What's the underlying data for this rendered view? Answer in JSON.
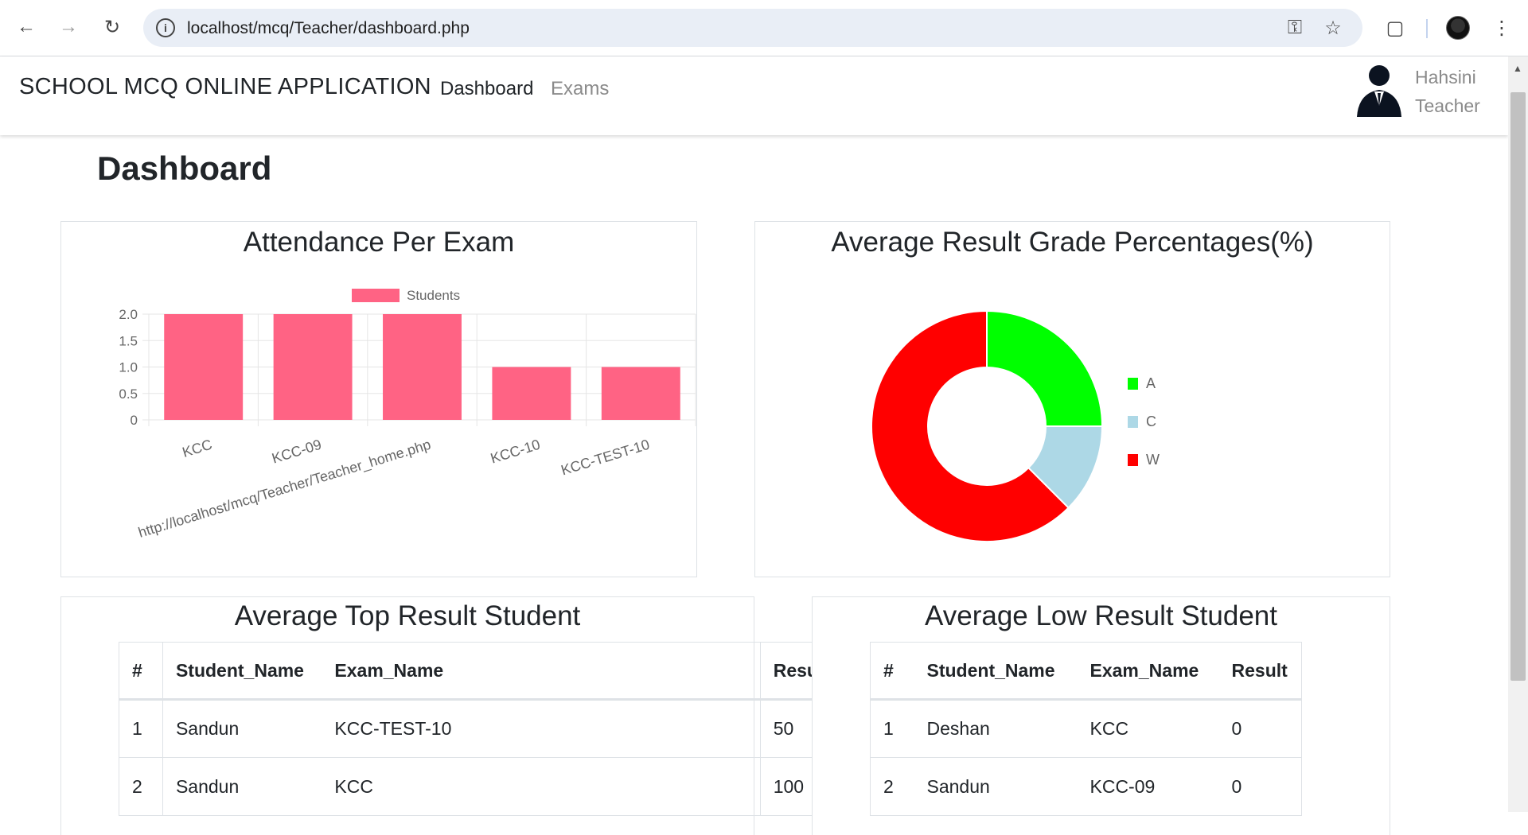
{
  "browser": {
    "url": "localhost/mcq/Teacher/dashboard.php"
  },
  "navbar": {
    "brand": "SCHOOL MCQ ONLINE APPLICATION",
    "links": [
      "Dashboard",
      "Exams"
    ],
    "user_name": "Hahsini",
    "user_role": "Teacher"
  },
  "page_title": "Dashboard",
  "attendance_card": {
    "title": "Attendance Per Exam"
  },
  "grade_card": {
    "title": "Average Result Grade Percentages(%)"
  },
  "chart_data": [
    {
      "type": "bar",
      "title": "Attendance Per Exam",
      "categories": [
        "KCC",
        "KCC-09",
        "http://localhost/mcq/Teacher/Teacher_home.php",
        "KCC-10",
        "KCC-TEST-10"
      ],
      "series": [
        {
          "name": "Students",
          "values": [
            2,
            2,
            2,
            1,
            1
          ],
          "color": "#ff6384"
        }
      ],
      "ylim": [
        0,
        2
      ],
      "yticks": [
        "2.0",
        "1.5",
        "1.0",
        "0.5",
        "0"
      ],
      "legend": "top",
      "grid": true
    },
    {
      "type": "pie",
      "donut": true,
      "title": "Average Result Grade Percentages(%)",
      "labels": [
        "A",
        "C",
        "W"
      ],
      "values": [
        25,
        12.5,
        62.5
      ],
      "colors": [
        "#00ff00",
        "#add8e6",
        "#ff0000"
      ],
      "legend": "right"
    }
  ],
  "top_table": {
    "title": "Average Top Result Student",
    "headers": [
      "#",
      "Student_Name",
      "Exam_Name",
      "Result"
    ],
    "rows": [
      [
        "1",
        "Sandun",
        "KCC-TEST-10",
        "50"
      ],
      [
        "2",
        "Sandun",
        "KCC",
        "100"
      ]
    ]
  },
  "low_table": {
    "title": "Average Low Result Student",
    "headers": [
      "#",
      "Student_Name",
      "Exam_Name",
      "Result"
    ],
    "rows": [
      [
        "1",
        "Deshan",
        "KCC",
        "0"
      ],
      [
        "2",
        "Sandun",
        "KCC-09",
        "0"
      ]
    ]
  }
}
